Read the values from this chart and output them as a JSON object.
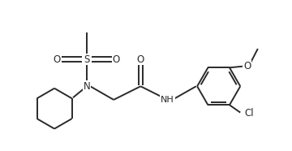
{
  "bg": "#ffffff",
  "lc": "#2a2a2a",
  "lw": 1.4,
  "fs": 8.5,
  "figsize": [
    3.6,
    1.86
  ],
  "dpi": 100,
  "xlim": [
    -0.3,
    10.3
  ],
  "ylim": [
    -0.2,
    5.4
  ]
}
